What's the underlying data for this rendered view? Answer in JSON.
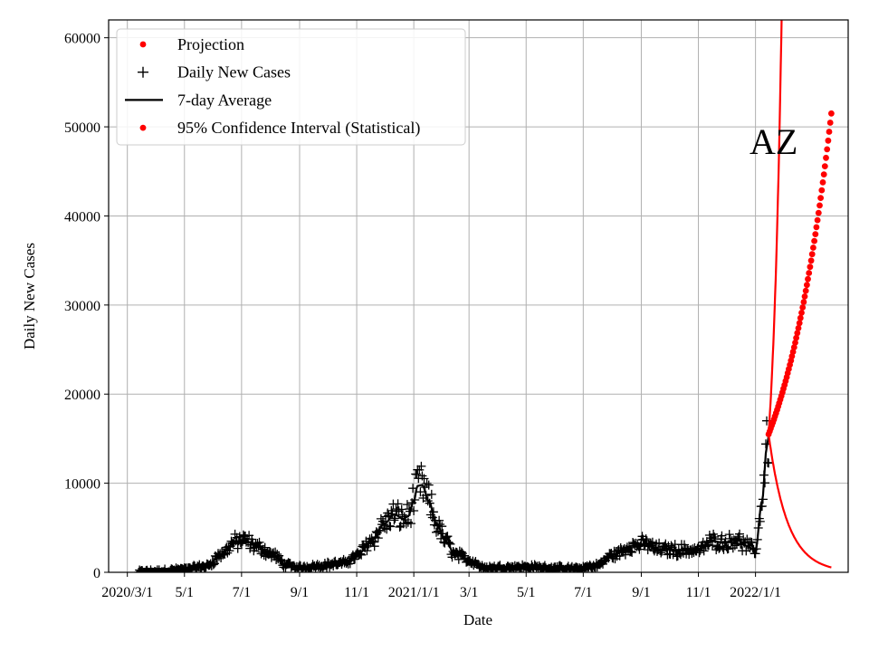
{
  "chart_data": {
    "type": "line",
    "title": "",
    "annotation": "AZ",
    "xlabel": "Date",
    "ylabel": "Daily New Cases",
    "xlim": [
      -20,
      770
    ],
    "ylim": [
      0,
      62000
    ],
    "grid": true,
    "legend_position": "top-left",
    "x_ticks": [
      {
        "day": 0,
        "label": "2020/3/1"
      },
      {
        "day": 61,
        "label": "5/1"
      },
      {
        "day": 122,
        "label": "7/1"
      },
      {
        "day": 184,
        "label": "9/1"
      },
      {
        "day": 245,
        "label": "11/1"
      },
      {
        "day": 306,
        "label": "2021/1/1"
      },
      {
        "day": 365,
        "label": "3/1"
      },
      {
        "day": 426,
        "label": "5/1"
      },
      {
        "day": 487,
        "label": "7/1"
      },
      {
        "day": 549,
        "label": "9/1"
      },
      {
        "day": 610,
        "label": "11/1"
      },
      {
        "day": 671,
        "label": "2022/1/1"
      }
    ],
    "y_ticks": [
      {
        "value": 0,
        "label": "0"
      },
      {
        "value": 10000,
        "label": "10000"
      },
      {
        "value": 20000,
        "label": "20000"
      },
      {
        "value": 30000,
        "label": "30000"
      },
      {
        "value": 40000,
        "label": "40000"
      },
      {
        "value": 50000,
        "label": "50000"
      },
      {
        "value": 60000,
        "label": "60000"
      }
    ],
    "legend": [
      {
        "label": "Projection",
        "marker": "dot",
        "color": "#ff0000"
      },
      {
        "label": "Daily New Cases",
        "marker": "plus",
        "color": "#000000"
      },
      {
        "label": "7-day Average",
        "marker": "line",
        "color": "#000000"
      },
      {
        "label": "95% Confidence Interval (Statistical)",
        "marker": "dot",
        "color": "#ff0000"
      }
    ],
    "seven_day_average_keypoints": [
      [
        10,
        0
      ],
      [
        30,
        80
      ],
      [
        60,
        300
      ],
      [
        85,
        700
      ],
      [
        100,
        2000
      ],
      [
        115,
        3400
      ],
      [
        125,
        3600
      ],
      [
        140,
        2800
      ],
      [
        155,
        2000
      ],
      [
        170,
        800
      ],
      [
        185,
        500
      ],
      [
        200,
        700
      ],
      [
        230,
        1000
      ],
      [
        245,
        1800
      ],
      [
        260,
        3500
      ],
      [
        275,
        5500
      ],
      [
        285,
        6500
      ],
      [
        295,
        6000
      ],
      [
        300,
        6300
      ],
      [
        306,
        8000
      ],
      [
        310,
        9700
      ],
      [
        315,
        9800
      ],
      [
        322,
        8000
      ],
      [
        330,
        5500
      ],
      [
        340,
        3500
      ],
      [
        350,
        2000
      ],
      [
        370,
        1200
      ],
      [
        380,
        500
      ],
      [
        420,
        600
      ],
      [
        480,
        400
      ],
      [
        500,
        700
      ],
      [
        520,
        2000
      ],
      [
        540,
        3000
      ],
      [
        555,
        3200
      ],
      [
        565,
        2600
      ],
      [
        590,
        2500
      ],
      [
        610,
        2500
      ],
      [
        625,
        3500
      ],
      [
        640,
        3300
      ],
      [
        650,
        3800
      ],
      [
        660,
        3000
      ],
      [
        671,
        2500
      ],
      [
        678,
        8000
      ],
      [
        683,
        14000
      ],
      [
        685,
        15300
      ]
    ],
    "projection": {
      "start_day": 685,
      "end_day": 752,
      "start_value": 15500,
      "end_value": 51500,
      "points": 60
    },
    "ci_upper": {
      "start_day": 685,
      "start_value": 15500,
      "growth_per_day": 0.1,
      "color": "#ff0000"
    },
    "ci_lower": {
      "start_day": 685,
      "end_day": 752,
      "start_value": 15500,
      "end_value": 550,
      "color": "#ff0000"
    },
    "colors": {
      "daily": "#000000",
      "avg": "#000000",
      "projection": "#ff0000",
      "ci": "#ff0000",
      "grid": "#b0b0b0"
    }
  }
}
